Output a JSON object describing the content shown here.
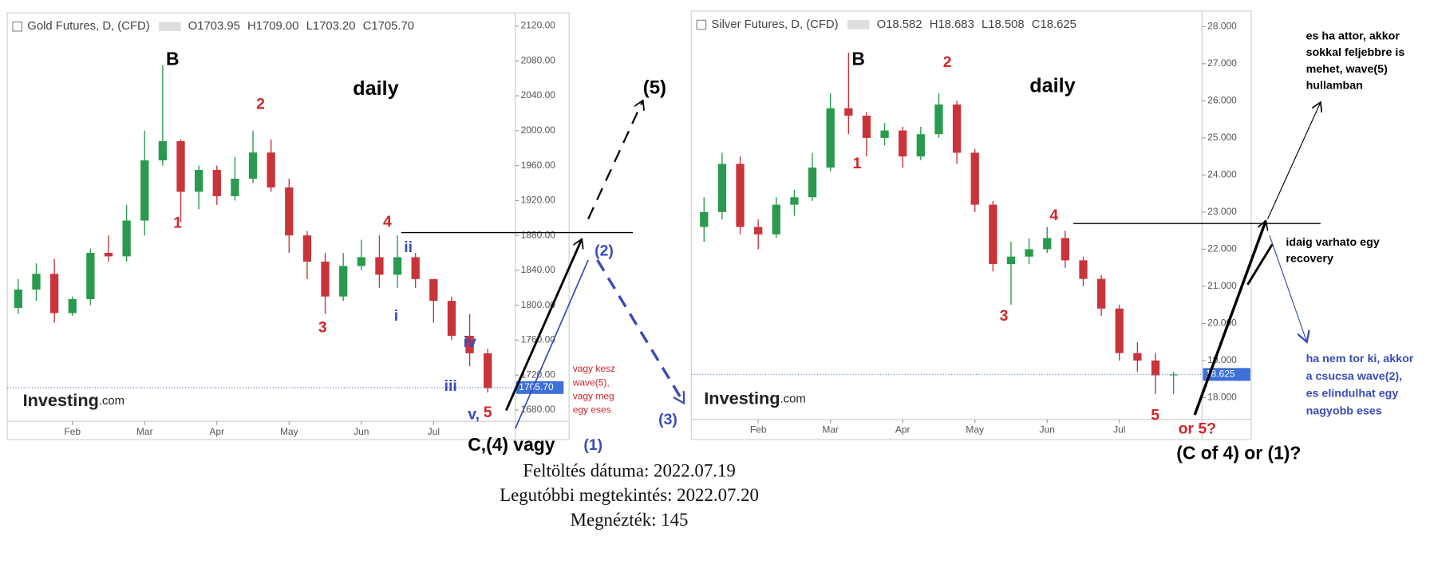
{
  "chart_data": [
    {
      "type": "candlestick",
      "header": {
        "title": "Gold Futures, D, (CFD)",
        "ohlc": [
          "O1703.95",
          "H1709.00",
          "L1703.20",
          "C1705.70"
        ]
      },
      "open": [
        1797,
        1818,
        1836,
        1791,
        1807,
        1860,
        1856,
        1897,
        1966,
        1988,
        1930,
        1955,
        1925,
        1945,
        1975,
        1935,
        1880,
        1850,
        1810,
        1845,
        1855,
        1835,
        1855,
        1830,
        1805,
        1765,
        1745
      ],
      "high": [
        1830,
        1848,
        1853,
        1810,
        1865,
        1880,
        1915,
        2000,
        2075,
        1990,
        1960,
        1960,
        1970,
        2000,
        1990,
        1945,
        1885,
        1860,
        1860,
        1875,
        1880,
        1880,
        1860,
        1830,
        1810,
        1790,
        1750
      ],
      "low": [
        1790,
        1805,
        1780,
        1788,
        1800,
        1850,
        1850,
        1880,
        1960,
        1895,
        1910,
        1915,
        1920,
        1940,
        1930,
        1860,
        1830,
        1790,
        1805,
        1840,
        1820,
        1820,
        1820,
        1780,
        1760,
        1730,
        1700
      ],
      "close": [
        1818,
        1836,
        1791,
        1807,
        1860,
        1856,
        1897,
        1966,
        1988,
        1930,
        1955,
        1925,
        1945,
        1975,
        1935,
        1880,
        1850,
        1810,
        1845,
        1855,
        1835,
        1855,
        1830,
        1805,
        1765,
        1745,
        1705
      ],
      "colors": {
        "up": "#2a9a4e",
        "down": "#c8343a"
      },
      "ylim": [
        1667,
        2135
      ],
      "yticks": [
        {
          "value": 1680,
          "label": "1680.00"
        },
        {
          "value": 1720,
          "label": "1720.00"
        },
        {
          "value": 1760,
          "label": "1760.00"
        },
        {
          "value": 1800,
          "label": "1800.00"
        },
        {
          "value": 1840,
          "label": "1840.00"
        },
        {
          "value": 1880,
          "label": "1880.00"
        },
        {
          "value": 1920,
          "label": "1920.00"
        },
        {
          "value": 1960,
          "label": "1960.00"
        },
        {
          "value": 2000,
          "label": "2000.00"
        },
        {
          "value": 2040,
          "label": "2040.00"
        },
        {
          "value": 2080,
          "label": "2080.00"
        },
        {
          "value": 2120,
          "label": "2120.00"
        }
      ],
      "xticks": [
        {
          "value": 3,
          "label": "Feb"
        },
        {
          "value": 7,
          "label": "Mar"
        },
        {
          "value": 11,
          "label": "Apr"
        },
        {
          "value": 15,
          "label": "May"
        },
        {
          "value": 19,
          "label": "Jun"
        },
        {
          "value": 23,
          "label": "Jul"
        }
      ],
      "last_price": {
        "value": 1705.7,
        "label": "1705.70"
      }
    },
    {
      "type": "candlestick",
      "header": {
        "title": "Silver Futures, D, (CFD)",
        "ohlc": [
          "O18.582",
          "H18.683",
          "L18.508",
          "C18.625"
        ]
      },
      "open": [
        22.6,
        23.0,
        24.3,
        22.6,
        22.4,
        23.2,
        23.4,
        24.2,
        25.8,
        25.6,
        25.0,
        25.2,
        24.5,
        25.1,
        25.9,
        24.6,
        23.2,
        21.6,
        21.8,
        22.0,
        22.3,
        21.7,
        21.2,
        20.4,
        19.2,
        19.0,
        18.6
      ],
      "high": [
        23.4,
        24.6,
        24.5,
        22.8,
        23.4,
        23.6,
        24.6,
        26.2,
        27.3,
        25.7,
        25.4,
        25.3,
        25.3,
        26.2,
        26.0,
        24.7,
        23.3,
        22.2,
        22.3,
        22.6,
        22.5,
        21.8,
        21.3,
        20.5,
        19.5,
        19.2,
        18.7
      ],
      "low": [
        22.2,
        22.8,
        22.4,
        22.0,
        22.3,
        22.9,
        23.3,
        24.1,
        25.1,
        24.5,
        24.8,
        24.2,
        24.4,
        25.0,
        24.3,
        23.0,
        21.4,
        20.5,
        21.6,
        21.9,
        21.5,
        21.0,
        20.2,
        19.0,
        18.7,
        18.1,
        18.1
      ],
      "close": [
        23.0,
        24.3,
        22.6,
        22.4,
        23.2,
        23.4,
        24.2,
        25.8,
        25.6,
        25.0,
        25.2,
        24.5,
        25.1,
        25.9,
        24.6,
        23.2,
        21.6,
        21.8,
        22.0,
        22.3,
        21.7,
        21.2,
        20.4,
        19.2,
        19.0,
        18.6,
        18.625
      ],
      "colors": {
        "up": "#2a9a4e",
        "down": "#c8343a"
      },
      "ylim": [
        17.41,
        28.37
      ],
      "yticks": [
        {
          "value": 18,
          "label": "18.000"
        },
        {
          "value": 19,
          "label": "19.000"
        },
        {
          "value": 20,
          "label": "20.000"
        },
        {
          "value": 21,
          "label": "21.000"
        },
        {
          "value": 22,
          "label": "22.000"
        },
        {
          "value": 23,
          "label": "23.000"
        },
        {
          "value": 24,
          "label": "24.000"
        },
        {
          "value": 25,
          "label": "25.000"
        },
        {
          "value": 26,
          "label": "26.000"
        },
        {
          "value": 27,
          "label": "27.000"
        },
        {
          "value": 28,
          "label": "28.000"
        }
      ],
      "xticks": [
        {
          "value": 3,
          "label": "Feb"
        },
        {
          "value": 7,
          "label": "Mar"
        },
        {
          "value": 11,
          "label": "Apr"
        },
        {
          "value": 15,
          "label": "May"
        },
        {
          "value": 19,
          "label": "Jun"
        },
        {
          "value": 23,
          "label": "Jul"
        }
      ],
      "last_price": 18.625
    }
  ],
  "annotations": {
    "gold": {
      "b": "B",
      "daily": "daily",
      "w1": "1",
      "w2": "2",
      "w3": "3",
      "w4": "4",
      "i": "i",
      "ii": "ii",
      "iii": "iii",
      "iv": "iv",
      "v": "v,",
      "five": "5",
      "p5": "(5)",
      "p2": "(2)",
      "p3": "(3)",
      "p1": "(1)",
      "c4": "C,(4) vagy",
      "logo": "Investing",
      "logo_suffix": ".com",
      "note": [
        "vagy kesz",
        "wave(5),",
        "vagy meg",
        "egy eses"
      ]
    },
    "silver": {
      "b": "B",
      "daily": "daily",
      "w1": "1",
      "w2": "2",
      "w3": "3",
      "w4": "4",
      "w5": "5",
      "or5": "or 5?",
      "c4": "(C of 4)  or (1)?",
      "logo": "Investing",
      "logo_suffix": ".com",
      "note_top": [
        "es ha attor, akkor",
        "sokkal feljebbre is",
        "mehet, wave(5)",
        "hullamban"
      ],
      "note_mid": [
        "idaig varhato egy",
        "recovery"
      ],
      "note_blue": [
        "ha nem tor ki, akkor",
        "a csucsa wave(2),",
        "es elindulhat egy",
        "nagyobb eses"
      ]
    }
  },
  "footer": [
    "Feltöltés dátuma: 2022.07.19",
    "Legutóbbi megtekintés: 2022.07.20",
    "Megnézték: 145"
  ]
}
